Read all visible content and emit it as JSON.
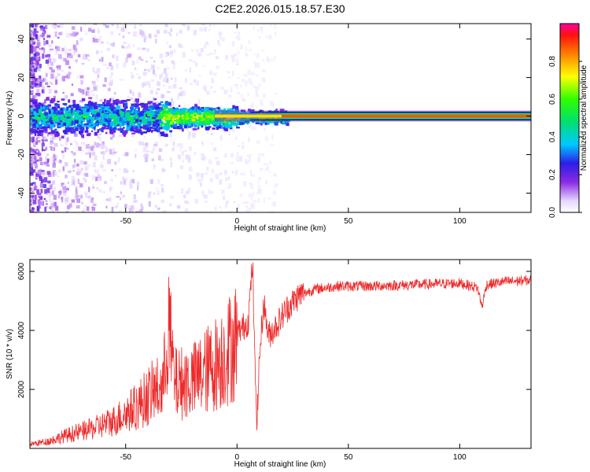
{
  "title": "C2E2.2026.015.18.57.E30",
  "chart_data": [
    {
      "type": "heatmap",
      "xlabel": "Height of straight line (km)",
      "ylabel": "Frequency (Hz)",
      "xlim": [
        -93,
        132
      ],
      "ylim": [
        -50,
        48
      ],
      "xticks": [
        -50,
        0,
        50,
        100
      ],
      "yticks": [
        -40,
        -20,
        0,
        20,
        40
      ],
      "colorbar": {
        "label": "Normalized spectral amplitude",
        "range": [
          0,
          1
        ],
        "ticks": [
          "0.0",
          "0.2",
          "0.4",
          "0.6",
          "0.8"
        ],
        "tick_values": [
          0,
          0.2,
          0.4,
          0.6,
          0.8
        ]
      },
      "ridge": {
        "center_frequency": 0,
        "strong_from_height": -35,
        "continuous_from_height": 20
      }
    },
    {
      "type": "line",
      "xlabel": "Height of straight line (km)",
      "ylabel": "SNR (10 * v/v)",
      "xlim": [
        -93,
        132
      ],
      "ylim": [
        0,
        6400
      ],
      "xticks": [
        -50,
        0,
        50,
        100
      ],
      "yticks": [
        2000,
        4000,
        6000
      ],
      "series_color": "#ee2a2a",
      "series": [
        {
          "x": [
            -93,
            -85,
            -75,
            -65,
            -55,
            -45,
            -38,
            -33,
            -31,
            -28,
            -20,
            -15,
            -10,
            -5,
            0,
            5,
            7,
            8,
            9,
            10,
            12,
            14,
            18,
            22,
            28,
            35,
            45,
            60,
            80,
            100,
            108,
            110,
            112,
            120,
            132
          ],
          "y": [
            150,
            250,
            500,
            700,
            1000,
            1500,
            2000,
            2200,
            4600,
            2300,
            2400,
            2700,
            3000,
            3400,
            3900,
            4300,
            6300,
            2800,
            900,
            3000,
            5000,
            3800,
            4200,
            4700,
            5200,
            5400,
            5500,
            5500,
            5550,
            5600,
            5450,
            4800,
            5550,
            5650,
            5700
          ]
        }
      ]
    }
  ]
}
